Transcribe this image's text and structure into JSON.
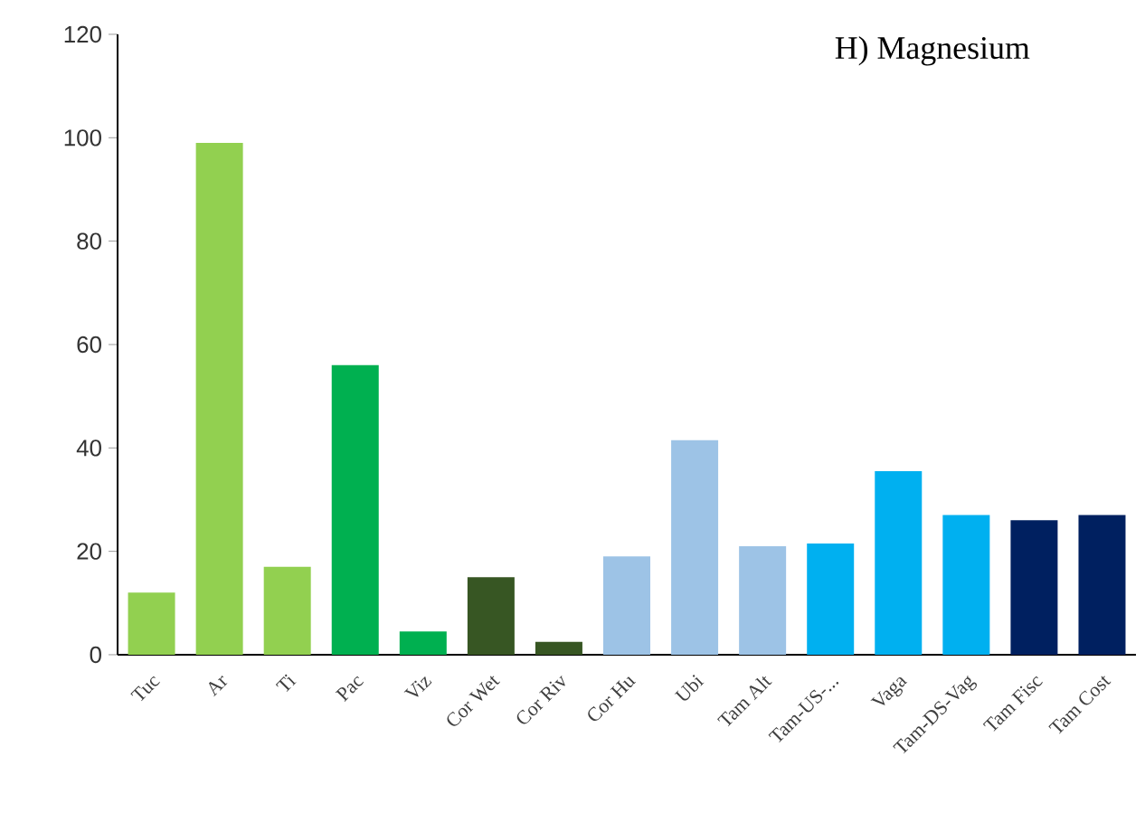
{
  "chart_data": {
    "type": "bar",
    "title": "H) Magnesium",
    "categories": [
      "Tuc",
      "Ar",
      "Ti",
      "Pac",
      "Viz",
      "Cor Wet",
      "Cor Riv",
      "Cor Hu",
      "Ubi",
      "Tam Alt",
      "Tam-US-...",
      "Vaga",
      "Tam-DS-Vag",
      "Tam Fisc",
      "Tam Cost"
    ],
    "values": [
      12,
      99,
      17,
      56,
      4.5,
      15,
      2.5,
      19,
      41.5,
      21,
      21.5,
      35.5,
      27,
      26,
      27
    ],
    "colors": [
      "#92d050",
      "#92d050",
      "#92d050",
      "#00b050",
      "#00b050",
      "#375623",
      "#375623",
      "#9dc3e6",
      "#9dc3e6",
      "#9dc3e6",
      "#00b0f0",
      "#00b0f0",
      "#00b0f0",
      "#002060",
      "#002060"
    ],
    "ylim": [
      0,
      120
    ],
    "yticks": [
      0,
      20,
      40,
      60,
      80,
      100,
      120
    ]
  }
}
